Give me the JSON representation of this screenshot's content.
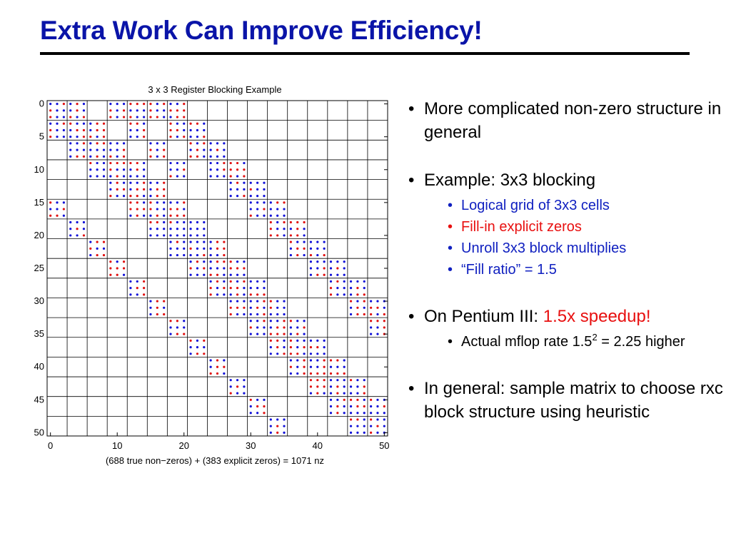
{
  "slide": {
    "title": "Extra Work Can Improve Efficiency!"
  },
  "figure": {
    "title": "3 x 3 Register Blocking Example",
    "caption": "(688 true non−zeros) + (383 explicit zeros) = 1071 nz",
    "x_ticks": [
      "0",
      "10",
      "20",
      "30",
      "40",
      "50"
    ],
    "y_ticks": [
      "0",
      "5",
      "10",
      "15",
      "20",
      "25",
      "30",
      "35",
      "40",
      "45",
      "50"
    ],
    "colors": {
      "true_nonzero": "#1010d8",
      "explicit_zero": "#e01010",
      "grid": "#000000"
    }
  },
  "bullets": {
    "b1": "More complicated non-zero structure in general",
    "b2": "Example: 3x3 blocking",
    "b2_sub": [
      "Logical grid of 3x3 cells",
      "Fill-in explicit zeros",
      "Unroll 3x3 block multiplies",
      "“Fill ratio” = 1.5"
    ],
    "b3_prefix": "On Pentium III: ",
    "b3_highlight": "1.5x speedup!",
    "b3_sub_pre": "Actual mflop rate 1.5",
    "b3_sub_sup": "2",
    "b3_sub_post": " = 2.25 higher",
    "b4": "In general: sample matrix to choose rxc block structure using heuristic",
    "bullet_glyph": "•"
  }
}
